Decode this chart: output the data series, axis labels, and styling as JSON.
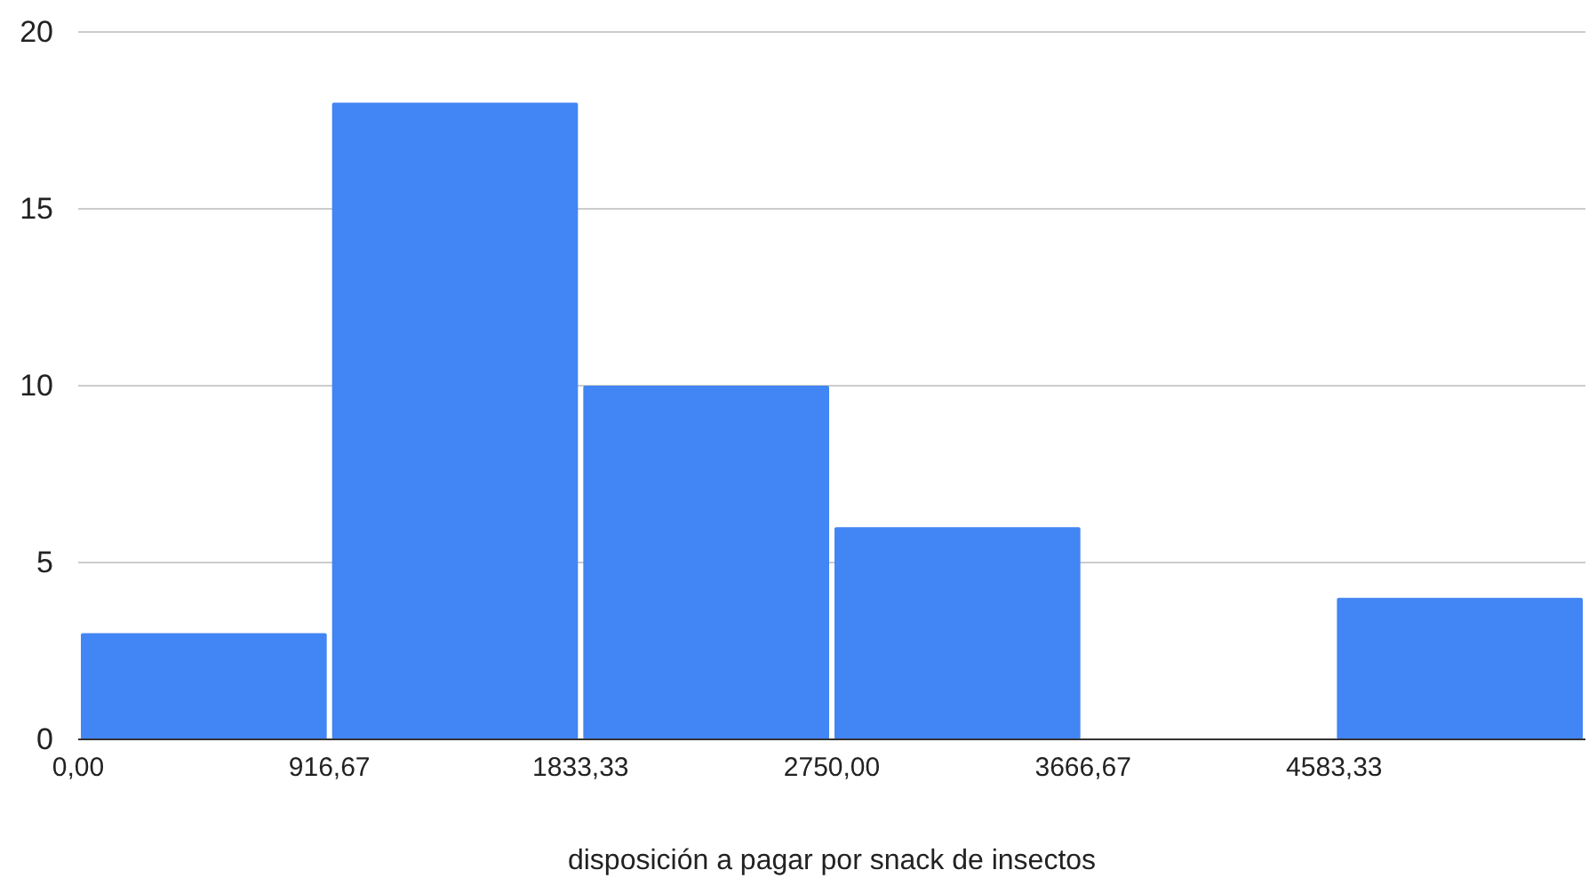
{
  "chart_data": {
    "type": "histogram",
    "xlabel": "disposición a pagar por snack de insectos",
    "bins": [
      0,
      916.67,
      1833.33,
      2750,
      3666.67,
      4583.33,
      5500
    ],
    "values": [
      3,
      18,
      10,
      6,
      0,
      4
    ],
    "color": "#4285f4",
    "xlim": [
      0,
      5500
    ],
    "xticks": [
      {
        "value": 0,
        "label": "0,00"
      },
      {
        "value": 916.67,
        "label": "916,67"
      },
      {
        "value": 1833.33,
        "label": "1833,33"
      },
      {
        "value": 2750,
        "label": "2750,00"
      },
      {
        "value": 3666.67,
        "label": "3666,67"
      },
      {
        "value": 4583.33,
        "label": "4583,33"
      }
    ],
    "ylim": [
      0,
      20
    ],
    "yticks": [
      0,
      5,
      10,
      15,
      20
    ],
    "grid": "y"
  }
}
